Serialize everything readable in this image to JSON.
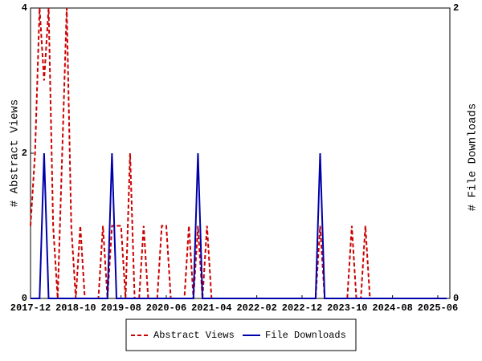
{
  "chart_data": {
    "type": "line",
    "x": [
      "2017-12",
      "2018-01",
      "2018-02",
      "2018-03",
      "2018-04",
      "2018-05",
      "2018-06",
      "2018-07",
      "2018-08",
      "2018-09",
      "2018-10",
      "2018-11",
      "2018-12",
      "2019-01",
      "2019-02",
      "2019-03",
      "2019-04",
      "2019-05",
      "2019-06",
      "2019-07",
      "2019-08",
      "2019-09",
      "2019-10",
      "2019-11",
      "2019-12",
      "2020-01",
      "2020-02",
      "2020-03",
      "2020-04",
      "2020-05",
      "2020-06",
      "2020-07",
      "2020-08",
      "2020-09",
      "2020-10",
      "2020-11",
      "2020-12",
      "2021-01",
      "2021-02",
      "2021-03",
      "2021-04",
      "2021-05",
      "2021-06",
      "2021-07",
      "2021-08",
      "2021-09",
      "2021-10",
      "2021-11",
      "2021-12",
      "2022-01",
      "2022-02",
      "2022-03",
      "2022-04",
      "2022-05",
      "2022-06",
      "2022-07",
      "2022-08",
      "2022-09",
      "2022-10",
      "2022-11",
      "2022-12",
      "2023-01",
      "2023-02",
      "2023-03",
      "2023-04",
      "2023-05",
      "2023-06",
      "2023-07",
      "2023-08",
      "2023-09",
      "2023-10",
      "2023-11",
      "2023-12",
      "2024-01",
      "2024-02",
      "2024-03",
      "2024-04",
      "2024-05",
      "2024-06",
      "2024-07",
      "2024-08",
      "2024-09",
      "2024-10",
      "2024-11",
      "2024-12",
      "2025-01",
      "2025-02",
      "2025-03",
      "2025-04",
      "2025-05",
      "2025-06",
      "2025-07",
      "2025-08"
    ],
    "xticks": [
      "2017-12",
      "2018-10",
      "2019-08",
      "2020-06",
      "2021-04",
      "2022-02",
      "2022-12",
      "2023-10",
      "2024-08",
      "2025-06"
    ],
    "ylabel": "# Abstract Views",
    "y2label": "# File Downloads",
    "ylim": [
      0,
      4
    ],
    "yticks": [
      0,
      2,
      4
    ],
    "y2lim": [
      0,
      2
    ],
    "y2ticks": [
      0,
      2
    ],
    "legend": "bottom",
    "series": [
      {
        "name": "Abstract Views",
        "color": "#cc0000",
        "dash": true,
        "axis": "y",
        "values": [
          1,
          2,
          4,
          3,
          4,
          1,
          0,
          2,
          4,
          1,
          0,
          1,
          0,
          0,
          0,
          0,
          1,
          0,
          1,
          1,
          1,
          0,
          2,
          0,
          0,
          1,
          0,
          0,
          0,
          1,
          1,
          0,
          0,
          0,
          0,
          1,
          0,
          1,
          0,
          1,
          0,
          0,
          0,
          0,
          0,
          0,
          0,
          0,
          0,
          0,
          0,
          0,
          0,
          0,
          0,
          0,
          0,
          0,
          0,
          0,
          0,
          0,
          0,
          0,
          1,
          0,
          0,
          0,
          0,
          0,
          0,
          1,
          0,
          0,
          1,
          0,
          0,
          0,
          0,
          0,
          0,
          0,
          0,
          0,
          0,
          0,
          0,
          0,
          0,
          0,
          0,
          0,
          0
        ]
      },
      {
        "name": "File Downloads",
        "color": "#0000aa",
        "dash": false,
        "axis": "y2",
        "values": [
          0,
          0,
          0,
          1,
          0,
          0,
          0,
          0,
          0,
          0,
          0,
          0,
          0,
          0,
          0,
          0,
          0,
          0,
          1,
          0,
          0,
          0,
          0,
          0,
          0,
          0,
          0,
          0,
          0,
          0,
          0,
          0,
          0,
          0,
          0,
          0,
          0,
          1,
          0,
          0,
          0,
          0,
          0,
          0,
          0,
          0,
          0,
          0,
          0,
          0,
          0,
          0,
          0,
          0,
          0,
          0,
          0,
          0,
          0,
          0,
          0,
          0,
          0,
          0,
          1,
          0,
          0,
          0,
          0,
          0,
          0,
          0,
          0,
          0,
          0,
          0,
          0,
          0,
          0,
          0,
          0,
          0,
          0,
          0,
          0,
          0,
          0,
          0,
          0,
          0,
          0,
          0,
          0
        ]
      }
    ]
  }
}
